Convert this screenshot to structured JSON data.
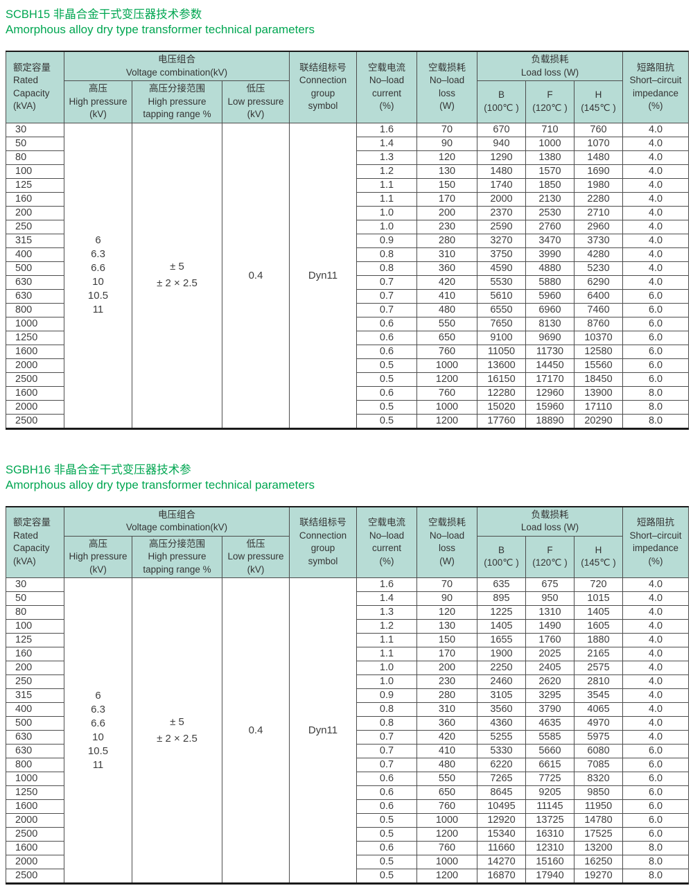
{
  "theme": {
    "title_green": "#00a651",
    "header_bg": "#b7dcd5",
    "border_dark": "#4c4c4c",
    "thick_border": "#1a1a1a"
  },
  "table_header": {
    "rated_capacity": "额定容量\nRated\nCapacity\n(kVA)",
    "voltage_combination": "电压组合\nVoltage combination(kV)",
    "high_pressure": "高压\nHigh pressure\n(kV)",
    "tapping_range": "高压分接范围\nHigh pressure\ntapping range %",
    "low_pressure": "低压\nLow pressure\n(kV)",
    "connection": "联结组标号\nConnection\ngroup\nsymbol",
    "no_load_current": "空载电流\nNo–load\ncurrent\n(%)",
    "no_load_loss": "空载损耗\nNo–load\nloss\n(W)",
    "load_loss": "负载损耗\nLoad loss (W)",
    "load_loss_b": "B\n(100℃ )",
    "load_loss_f": "F\n(120℃ )",
    "load_loss_h": "H\n(145℃ )",
    "impedance": "短路阻抗\nShort–circuit\nimpedance\n(%)"
  },
  "sections": [
    {
      "title_zh": "SCBH15 非晶合金干式变压器技术参数",
      "title_en": "Amorphous alloy dry type transformer technical parameters",
      "merged": {
        "high_pressure_values": "6\n6.3\n6.6\n10\n10.5\n11",
        "tapping_range_values": "± 5\n± 2 × 2.5",
        "low_pressure_value": "0.4",
        "connection_value": "Dyn11"
      },
      "rows": [
        [
          "30",
          "1.6",
          "70",
          "670",
          "710",
          "760",
          "4.0"
        ],
        [
          "50",
          "1.4",
          "90",
          "940",
          "1000",
          "1070",
          "4.0"
        ],
        [
          "80",
          "1.3",
          "120",
          "1290",
          "1380",
          "1480",
          "4.0"
        ],
        [
          "100",
          "1.2",
          "130",
          "1480",
          "1570",
          "1690",
          "4.0"
        ],
        [
          "125",
          "1.1",
          "150",
          "1740",
          "1850",
          "1980",
          "4.0"
        ],
        [
          "160",
          "1.1",
          "170",
          "2000",
          "2130",
          "2280",
          "4.0"
        ],
        [
          "200",
          "1.0",
          "200",
          "2370",
          "2530",
          "2710",
          "4.0"
        ],
        [
          "250",
          "1.0",
          "230",
          "2590",
          "2760",
          "2960",
          "4.0"
        ],
        [
          "315",
          "0.9",
          "280",
          "3270",
          "3470",
          "3730",
          "4.0"
        ],
        [
          "400",
          "0.8",
          "310",
          "3750",
          "3990",
          "4280",
          "4.0"
        ],
        [
          "500",
          "0.8",
          "360",
          "4590",
          "4880",
          "5230",
          "4.0"
        ],
        [
          "630",
          "0.7",
          "420",
          "5530",
          "5880",
          "6290",
          "4.0"
        ],
        [
          "630",
          "0.7",
          "410",
          "5610",
          "5960",
          "6400",
          "6.0"
        ],
        [
          "800",
          "0.7",
          "480",
          "6550",
          "6960",
          "7460",
          "6.0"
        ],
        [
          "1000",
          "0.6",
          "550",
          "7650",
          "8130",
          "8760",
          "6.0"
        ],
        [
          "1250",
          "0.6",
          "650",
          "9100",
          "9690",
          "10370",
          "6.0"
        ],
        [
          "1600",
          "0.6",
          "760",
          "11050",
          "11730",
          "12580",
          "6.0"
        ],
        [
          "2000",
          "0.5",
          "1000",
          "13600",
          "14450",
          "15560",
          "6.0"
        ],
        [
          "2500",
          "0.5",
          "1200",
          "16150",
          "17170",
          "18450",
          "6.0"
        ],
        [
          "1600",
          "0.6",
          "760",
          "12280",
          "12960",
          "13900",
          "8.0"
        ],
        [
          "2000",
          "0.5",
          "1000",
          "15020",
          "15960",
          "17110",
          "8.0"
        ],
        [
          "2500",
          "0.5",
          "1200",
          "17760",
          "18890",
          "20290",
          "8.0"
        ]
      ]
    },
    {
      "title_zh": "SGBH16 非晶合金干式变压器技术参",
      "title_en": "Amorphous alloy dry type transformer technical parameters",
      "merged": {
        "high_pressure_values": "6\n6.3\n6.6\n10\n10.5\n11",
        "tapping_range_values": "± 5\n± 2 × 2.5",
        "low_pressure_value": "0.4",
        "connection_value": "Dyn11"
      },
      "rows": [
        [
          "30",
          "1.6",
          "70",
          "635",
          "675",
          "720",
          "4.0"
        ],
        [
          "50",
          "1.4",
          "90",
          "895",
          "950",
          "1015",
          "4.0"
        ],
        [
          "80",
          "1.3",
          "120",
          "1225",
          "1310",
          "1405",
          "4.0"
        ],
        [
          "100",
          "1.2",
          "130",
          "1405",
          "1490",
          "1605",
          "4.0"
        ],
        [
          "125",
          "1.1",
          "150",
          "1655",
          "1760",
          "1880",
          "4.0"
        ],
        [
          "160",
          "1.1",
          "170",
          "1900",
          "2025",
          "2165",
          "4.0"
        ],
        [
          "200",
          "1.0",
          "200",
          "2250",
          "2405",
          "2575",
          "4.0"
        ],
        [
          "250",
          "1.0",
          "230",
          "2460",
          "2620",
          "2810",
          "4.0"
        ],
        [
          "315",
          "0.9",
          "280",
          "3105",
          "3295",
          "3545",
          "4.0"
        ],
        [
          "400",
          "0.8",
          "310",
          "3560",
          "3790",
          "4065",
          "4.0"
        ],
        [
          "500",
          "0.8",
          "360",
          "4360",
          "4635",
          "4970",
          "4.0"
        ],
        [
          "630",
          "0.7",
          "420",
          "5255",
          "5585",
          "5975",
          "4.0"
        ],
        [
          "630",
          "0.7",
          "410",
          "5330",
          "5660",
          "6080",
          "6.0"
        ],
        [
          "800",
          "0.7",
          "480",
          "6220",
          "6615",
          "7085",
          "6.0"
        ],
        [
          "1000",
          "0.6",
          "550",
          "7265",
          "7725",
          "8320",
          "6.0"
        ],
        [
          "1250",
          "0.6",
          "650",
          "8645",
          "9205",
          "9850",
          "6.0"
        ],
        [
          "1600",
          "0.6",
          "760",
          "10495",
          "11145",
          "11950",
          "6.0"
        ],
        [
          "2000",
          "0.5",
          "1000",
          "12920",
          "13725",
          "14780",
          "6.0"
        ],
        [
          "2500",
          "0.5",
          "1200",
          "15340",
          "16310",
          "17525",
          "6.0"
        ],
        [
          "1600",
          "0.6",
          "760",
          "11660",
          "12310",
          "13200",
          "8.0"
        ],
        [
          "2000",
          "0.5",
          "1000",
          "14270",
          "15160",
          "16250",
          "8.0"
        ],
        [
          "2500",
          "0.5",
          "1200",
          "16870",
          "17940",
          "19270",
          "8.0"
        ]
      ]
    }
  ]
}
